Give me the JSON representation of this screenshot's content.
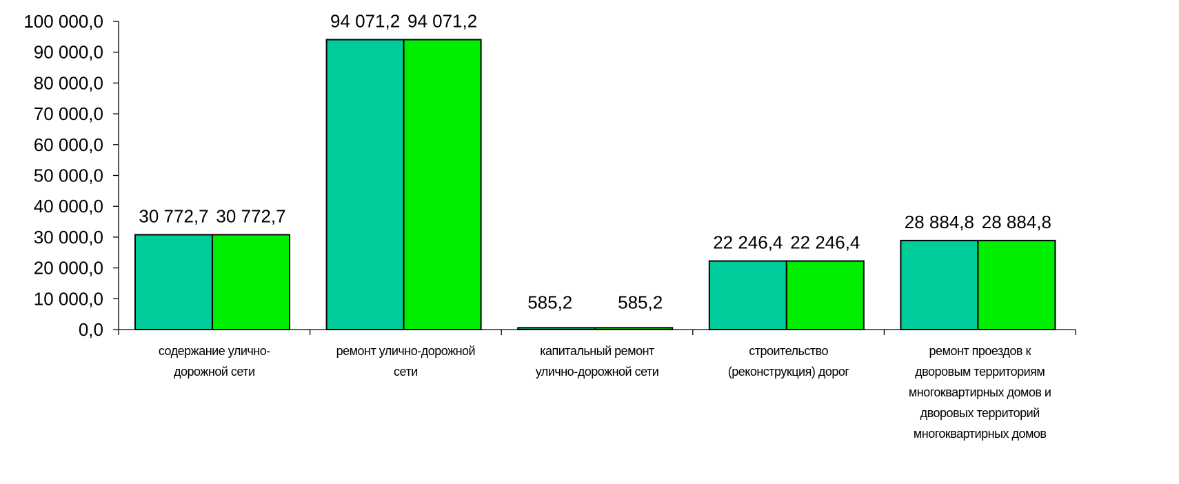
{
  "chart_data": {
    "type": "bar",
    "title": "",
    "xlabel": "",
    "ylabel": "",
    "ylim": [
      0,
      100000
    ],
    "grid": false,
    "legend": "none",
    "yticks": [
      "0,0",
      "10 000,0",
      "20 000,0",
      "30 000,0",
      "40 000,0",
      "50 000,0",
      "60 000,0",
      "70 000,0",
      "80 000,0",
      "90 000,0",
      "100 000,0"
    ],
    "categories": [
      [
        "содержание улично-",
        "дорожной сети"
      ],
      [
        "ремонт улично-дорожной",
        "сети"
      ],
      [
        "капитальный ремонт",
        "улично-дорожной сети"
      ],
      [
        "строительство",
        "(реконструкция) дорог"
      ],
      [
        "ремонт проездов к",
        "дворовым территориям",
        "многоквартирных домов и",
        "дворовых территорий",
        "многоквартирных домов"
      ]
    ],
    "series": [
      {
        "color": "#00CC99",
        "values": [
          30772.7,
          94071.2,
          585.2,
          22246.4,
          28884.8
        ],
        "labels": [
          "30 772,7",
          "94 071,2",
          "585,2",
          "22 246,4",
          "28 884,8"
        ]
      },
      {
        "color": "#00EE00",
        "values": [
          30772.7,
          94071.2,
          585.2,
          22246.4,
          28884.8
        ],
        "labels": [
          "30 772,7",
          "94 071,2",
          "585,2",
          "22 246,4",
          "28 884,8"
        ]
      }
    ]
  }
}
